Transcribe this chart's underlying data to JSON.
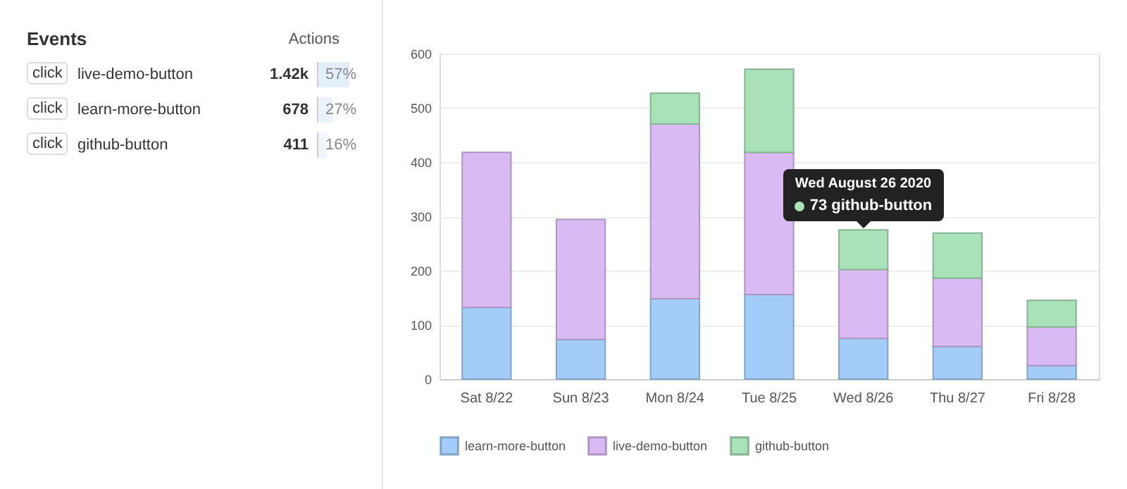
{
  "chart_data": [
    {
      "type": "other",
      "title": "Events",
      "ylabel": "Actions",
      "categories": [
        "live-demo-button",
        "learn-more-button",
        "github-button"
      ],
      "series": [
        {
          "values": [
            1420,
            678,
            411
          ],
          "value_labels": [
            "1.42k",
            "678",
            "411"
          ]
        },
        {
          "values": [
            57,
            27,
            16
          ],
          "value_labels": [
            "57%",
            "27%",
            "16%"
          ]
        }
      ],
      "annotations": [
        "click",
        "click",
        "click"
      ]
    },
    {
      "type": "bar",
      "stacked": true,
      "categories": [
        "Sat 8/22",
        "Sun 8/23",
        "Mon 8/24",
        "Tue 8/25",
        "Wed 8/26",
        "Thu 8/27",
        "Fri 8/28"
      ],
      "series": [
        {
          "name": "learn-more-button",
          "color": "#a3cdf8",
          "values": [
            132,
            73,
            148,
            156,
            75,
            60,
            25
          ]
        },
        {
          "name": "live-demo-button",
          "color": "#d9baf2",
          "values": [
            286,
            221,
            322,
            262,
            127,
            126,
            71
          ]
        },
        {
          "name": "github-button",
          "color": "#a9e1b8",
          "values": [
            null,
            null,
            57,
            153,
            73,
            83,
            49
          ]
        }
      ],
      "ylim": [
        0,
        600
      ],
      "yticks": [
        0,
        100,
        200,
        300,
        400,
        500,
        600
      ],
      "grid": "y",
      "legend": "bottom",
      "annotations": [
        {
          "text": "Wed August 26 2020",
          "x": "Wed 8/26",
          "y": 275
        },
        {
          "text": "73 github-button",
          "x": "Wed 8/26",
          "y": 275
        }
      ]
    }
  ]
}
